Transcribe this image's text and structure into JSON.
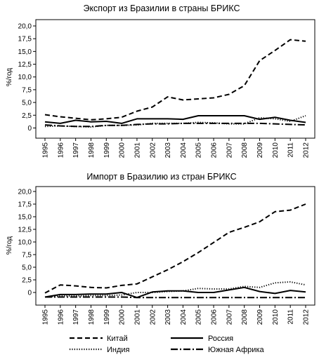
{
  "legend": {
    "entries": [
      {
        "label": "Китай",
        "dash": "7,4"
      },
      {
        "label": "Россия",
        "dash": ""
      },
      {
        "label": "Индия",
        "dash": "1.2,2.2"
      },
      {
        "label": "Южная Африка",
        "dash": "10,3,2,3"
      }
    ]
  },
  "chart_data": [
    {
      "type": "line",
      "title": "Экспорт из Бразилии в страны БРИКС",
      "ylabel": "%/год",
      "xlabel": "",
      "ylim": [
        -2,
        20
      ],
      "yticks": [
        "0",
        "2,5",
        "5,0",
        "7,5",
        "10,0",
        "12,5",
        "15,0",
        "17,5",
        "20,0"
      ],
      "x": [
        "1995",
        "1996",
        "1997",
        "1998",
        "1999",
        "2000",
        "2001",
        "2002",
        "2003",
        "2004",
        "2005",
        "2006",
        "2007",
        "2008",
        "2009",
        "2010",
        "2011",
        "2012"
      ],
      "series": [
        {
          "name": "Китай",
          "values": [
            2.6,
            2.2,
            1.9,
            1.6,
            1.8,
            2.1,
            3.3,
            4.1,
            6.1,
            5.5,
            5.7,
            5.9,
            6.6,
            8.3,
            13.2,
            15.2,
            17.3,
            17.0
          ]
        },
        {
          "name": "Россия",
          "values": [
            1.2,
            0.9,
            1.5,
            1.2,
            1.3,
            0.9,
            1.8,
            1.8,
            1.8,
            1.7,
            2.4,
            2.4,
            2.4,
            2.4,
            1.7,
            2.1,
            1.5,
            1.1
          ]
        },
        {
          "name": "Индия",
          "values": [
            0.3,
            0.4,
            0.3,
            0.2,
            0.5,
            0.5,
            0.6,
            0.9,
            0.9,
            0.9,
            1.1,
            1.0,
            0.8,
            0.8,
            2.0,
            1.8,
            1.3,
            2.4
          ]
        },
        {
          "name": "Южная Африка",
          "values": [
            0.6,
            0.4,
            0.3,
            0.3,
            0.5,
            0.5,
            0.7,
            0.8,
            0.8,
            0.9,
            0.9,
            0.9,
            0.9,
            0.9,
            0.9,
            0.8,
            0.7,
            0.6
          ]
        }
      ]
    },
    {
      "type": "line",
      "title": "Импорт в Бразилию из стран БРИКС",
      "ylabel": "%/год",
      "xlabel": "",
      "ylim": [
        -2.5,
        20
      ],
      "yticks": [
        "0",
        "2,5",
        "5,0",
        "7,5",
        "10,0",
        "12,5",
        "15,0",
        "17,5",
        "20,0"
      ],
      "x": [
        "1995",
        "1996",
        "1997",
        "1998",
        "1999",
        "2000",
        "2001",
        "2002",
        "2003",
        "2004",
        "2005",
        "2006",
        "2007",
        "2008",
        "2009",
        "2010",
        "2011",
        "2012"
      ],
      "series": [
        {
          "name": "Китай",
          "values": [
            -0.1,
            1.5,
            1.3,
            1.0,
            0.9,
            1.4,
            1.7,
            3.1,
            4.5,
            6.1,
            7.9,
            9.9,
            11.9,
            12.9,
            14.0,
            16.0,
            16.3,
            17.5
          ]
        },
        {
          "name": "Россия",
          "values": [
            -0.9,
            -0.4,
            -0.4,
            -0.3,
            -0.3,
            0.0,
            -1.0,
            0.1,
            0.3,
            0.3,
            0.0,
            0.0,
            0.5,
            1.0,
            0.2,
            -0.2,
            0.4,
            0.1
          ]
        },
        {
          "name": "Индия",
          "values": [
            -0.9,
            -0.7,
            -0.7,
            -0.6,
            -0.6,
            -0.5,
            0.0,
            0.0,
            0.2,
            0.3,
            0.8,
            0.7,
            0.7,
            1.2,
            1.0,
            1.9,
            2.1,
            1.5
          ]
        },
        {
          "name": "Южная Африка",
          "values": [
            -0.9,
            -0.9,
            -0.9,
            -0.9,
            -0.9,
            -0.9,
            -1.0,
            -1.0,
            -1.0,
            -1.0,
            -1.0,
            -1.0,
            -1.0,
            -1.0,
            -1.0,
            -1.0,
            -1.0,
            -1.0
          ]
        }
      ]
    }
  ]
}
